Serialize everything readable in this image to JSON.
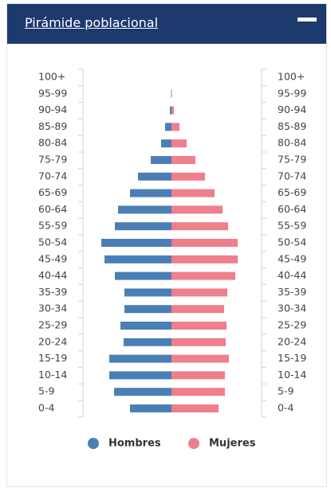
{
  "chart_data": {
    "type": "pyramid",
    "title": "Pirámide poblacional",
    "categories": [
      "100+",
      "95-99",
      "90-94",
      "85-89",
      "80-84",
      "75-79",
      "70-74",
      "65-69",
      "60-64",
      "55-59",
      "50-54",
      "45-49",
      "40-44",
      "35-39",
      "30-34",
      "25-29",
      "20-24",
      "15-19",
      "10-14",
      "5-9",
      "0-4"
    ],
    "series": [
      {
        "name": "Hombres",
        "color": "#4a7fb5",
        "values": [
          0,
          0.5,
          2,
          8,
          13,
          26,
          42,
          52,
          67,
          71,
          88,
          84,
          71,
          59,
          59,
          64,
          60,
          78,
          78,
          72,
          52
        ]
      },
      {
        "name": "Mujeres",
        "color": "#ee7f8b",
        "values": [
          0,
          0.5,
          3,
          10,
          19,
          30,
          42,
          54,
          64,
          71,
          83,
          83,
          80,
          70,
          66,
          69,
          68,
          72,
          67,
          67,
          59
        ]
      }
    ],
    "xlim": [
      0,
      100
    ]
  }
}
